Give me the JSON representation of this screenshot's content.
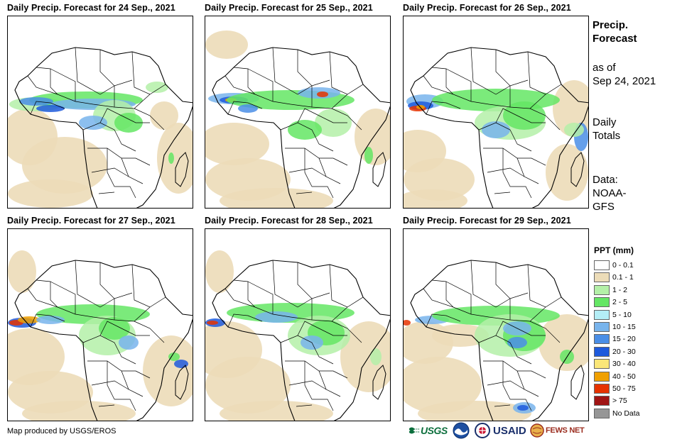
{
  "panels": [
    {
      "title": "Daily Precip. Forecast for 24  Sep., 2021"
    },
    {
      "title": "Daily Precip. Forecast for 25  Sep., 2021"
    },
    {
      "title": "Daily Precip. Forecast for 26  Sep., 2021"
    },
    {
      "title": "Daily Precip. Forecast for 27  Sep., 2021"
    },
    {
      "title": "Daily Precip. Forecast for 28  Sep., 2021"
    },
    {
      "title": "Daily Precip. Forecast for 29  Sep., 2021"
    }
  ],
  "sidebar": {
    "heading_line1": "Precip.",
    "heading_line2": "Forecast",
    "asof_line1": "as of",
    "asof_line2": "Sep 24, 2021",
    "totals_line1": "Daily",
    "totals_line2": "Totals",
    "data_line1": "Data:",
    "data_line2": "NOAA-",
    "data_line3": "GFS"
  },
  "legend": {
    "title": "PPT (mm)",
    "items": [
      {
        "label": "0 - 0.1",
        "color": "#ffffff"
      },
      {
        "label": "0.1 - 1",
        "color": "#ecdcb8"
      },
      {
        "label": "1 - 2",
        "color": "#b4f0a8"
      },
      {
        "label": "2 - 5",
        "color": "#64e664"
      },
      {
        "label": "5 - 10",
        "color": "#b4eef6"
      },
      {
        "label": "10 - 15",
        "color": "#78b4ec"
      },
      {
        "label": "15 - 20",
        "color": "#4a8ee6"
      },
      {
        "label": "20 - 30",
        "color": "#1e5adc"
      },
      {
        "label": "30 - 40",
        "color": "#fae678"
      },
      {
        "label": "40 - 50",
        "color": "#f0a000"
      },
      {
        "label": "50 - 75",
        "color": "#e63200"
      },
      {
        "label": "> 75",
        "color": "#a01414"
      },
      {
        "label": "No Data",
        "color": "#969696"
      }
    ]
  },
  "footer": {
    "credit": "Map produced by USGS/EROS",
    "logo_usgs": "USGS",
    "logo_usaid": "USAID",
    "logo_fews": "FEWS NET"
  }
}
